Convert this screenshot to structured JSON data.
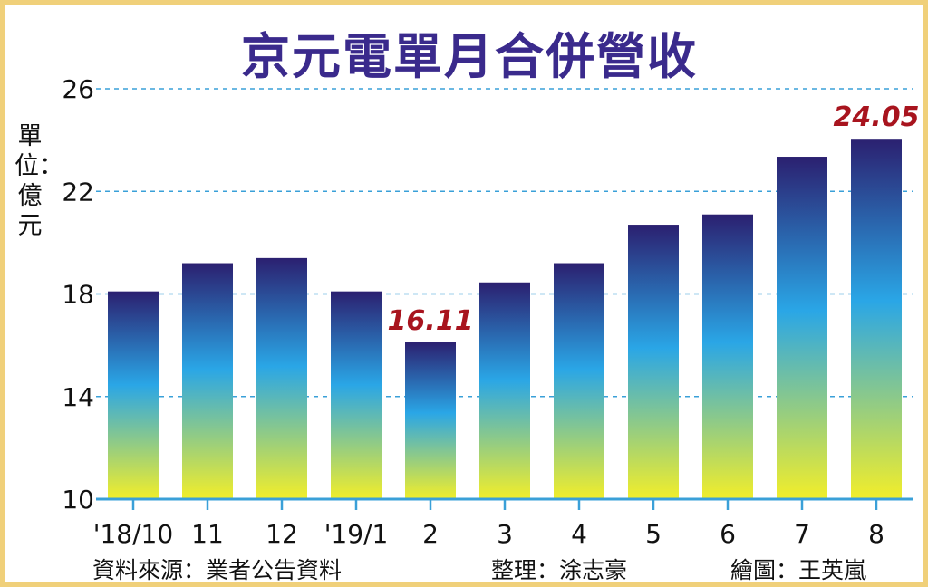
{
  "chart_data": {
    "type": "bar",
    "title": "京元電單月合併營收",
    "ylabel": "單位：億元",
    "categories": [
      "'18/10",
      "11",
      "12",
      "'19/1",
      "2",
      "3",
      "4",
      "5",
      "6",
      "7",
      "8"
    ],
    "values": [
      18.1,
      19.2,
      19.4,
      18.1,
      16.11,
      18.45,
      19.2,
      20.7,
      21.1,
      23.35,
      24.05
    ],
    "data_labels": [
      {
        "category": "2",
        "text": "16.11"
      },
      {
        "category": "8",
        "text": "24.05"
      }
    ],
    "yticks": [
      10,
      14,
      18,
      22,
      26
    ],
    "ylim": [
      10,
      26
    ],
    "grid": true,
    "colors": {
      "bar_top": "#2b2070",
      "bar_mid": "#2aa6e6",
      "bar_bottom": "#f2ee2a",
      "title": "#3a2a8c",
      "label": "#a8141e",
      "grid": "#3aa0d8",
      "axis": "#3aa0d8",
      "frame": "#f0d07a"
    }
  },
  "footer": {
    "source": "資料來源：業者公告資料",
    "editor": "整理：涂志豪",
    "illustrator": "繪圖：王英嵐"
  }
}
